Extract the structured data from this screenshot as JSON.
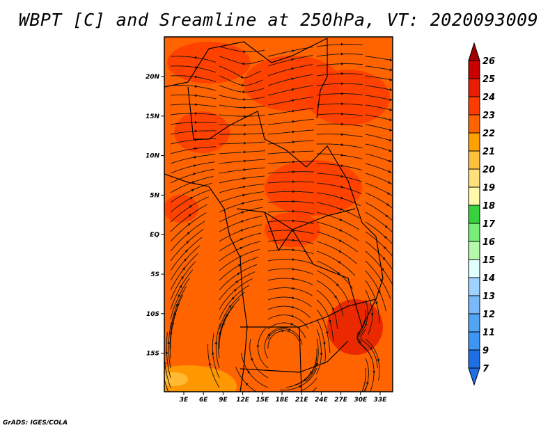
{
  "chart_data": {
    "type": "heatmap",
    "title": "WBPT [C] and Sreamline at 250hPa, VT: 2020093009",
    "credit": "GrADS: IGES/COLA",
    "x_ticks": [
      "3E",
      "6E",
      "9E",
      "12E",
      "15E",
      "18E",
      "21E",
      "24E",
      "27E",
      "30E",
      "33E"
    ],
    "y_ticks": [
      "20N",
      "15N",
      "10N",
      "5N",
      "EQ",
      "5S",
      "10S",
      "15S"
    ],
    "lon_range": [
      0,
      35
    ],
    "lat_range": [
      -20,
      25
    ],
    "colorbar": {
      "labels": [
        "26",
        "25",
        "24",
        "23",
        "22",
        "21",
        "20",
        "19",
        "18",
        "17",
        "16",
        "15",
        "14",
        "13",
        "12",
        "11",
        "9",
        "7"
      ],
      "colors": [
        "#a00000",
        "#c80000",
        "#e81e00",
        "#ff3c00",
        "#ff6400",
        "#ffa000",
        "#ffc03c",
        "#ffe07a",
        "#fffaaa",
        "#37d23c",
        "#78f078",
        "#b4faaa",
        "#e1ffff",
        "#a0d2ff",
        "#78b9fa",
        "#50a5f5",
        "#3c96f5",
        "#1e6ee6",
        "#1e6ee6"
      ]
    },
    "dominant_values": "22-24 C over most of domain; 20-21 C in far southwest"
  }
}
